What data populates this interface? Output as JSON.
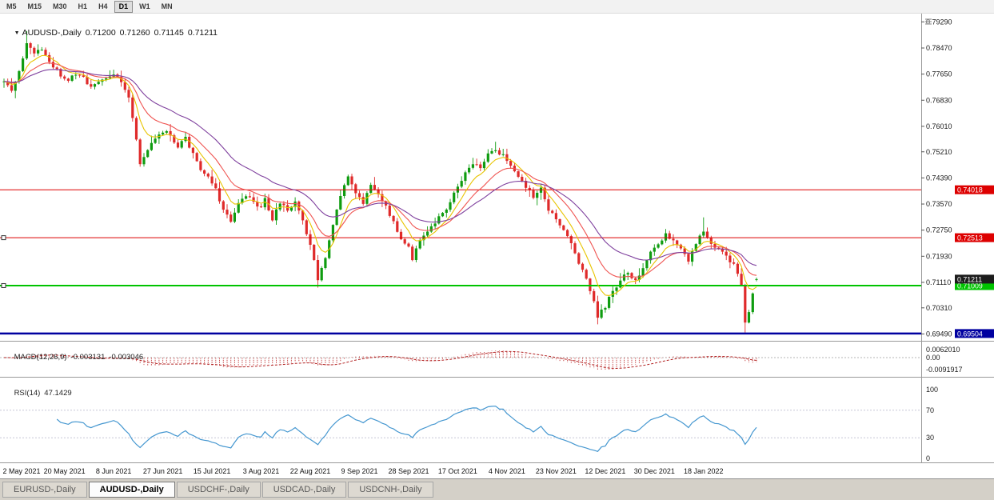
{
  "toolbar": {
    "timeframes": [
      "M5",
      "M15",
      "M30",
      "H1",
      "H4",
      "D1",
      "W1",
      "MN"
    ],
    "active": "D1"
  },
  "header": {
    "marker": "▼",
    "symbol": "AUDUSD-,Daily",
    "open": "0.71200",
    "high": "0.71260",
    "low": "0.71145",
    "close": "0.71211"
  },
  "price_scale": [
    "0.79290",
    "0.78470",
    "0.77650",
    "0.76830",
    "0.76010",
    "0.75210",
    "0.74390",
    "0.73570",
    "0.72750",
    "0.71930",
    "0.71110",
    "0.70310",
    "0.69490"
  ],
  "date_labels": [
    "2 May 2021",
    "20 May 2021",
    "8 Jun 2021",
    "27 Jun 2021",
    "15 Jul 2021",
    "3 Aug 2021",
    "22 Aug 2021",
    "9 Sep 2021",
    "28 Sep 2021",
    "17 Oct 2021",
    "4 Nov 2021",
    "23 Nov 2021",
    "12 Dec 2021",
    "30 Dec 2021",
    "18 Jan 2022"
  ],
  "chart": {
    "hlines": [
      {
        "value": 0.74018,
        "label": "0.74018",
        "color": "#dd0000",
        "width": 1,
        "handle": false
      },
      {
        "value": 0.72513,
        "label": "0.72513",
        "color": "#dd0000",
        "width": 1,
        "handle": true
      },
      {
        "value": 0.71009,
        "label": "0.71009",
        "color": "#00c300",
        "width": 2,
        "handle": true
      },
      {
        "value": 0.69504,
        "label": "0.69504",
        "color": "#0000a0",
        "width": 2.5,
        "handle": false
      }
    ],
    "current_price": {
      "value": 0.71211,
      "label": "0.71211",
      "color": "#1c1c1c"
    }
  },
  "indicators": {
    "macd": {
      "label": "MACD(12,26,9)",
      "main": "-0.003131",
      "signal": "-0.003046",
      "scale": [
        "0.0062010",
        "0.00",
        "-0.0091917"
      ]
    },
    "rsi": {
      "label": "RSI(14)",
      "value": "47.1429",
      "levels": [
        "100",
        "70",
        "30",
        "0"
      ]
    }
  },
  "tabs": [
    {
      "label": "EURUSD-,Daily",
      "active": false
    },
    {
      "label": "AUDUSD-,Daily",
      "active": true
    },
    {
      "label": "USDCHF-,Daily",
      "active": false
    },
    {
      "label": "USDCAD-,Daily",
      "active": false
    },
    {
      "label": "USDCNH-,Daily",
      "active": false
    }
  ],
  "colors": {
    "bull": "#0f9c10",
    "bear": "#df2a2a",
    "macd_histogram": "#c94f4f",
    "macd_signal": "#b22222",
    "rsi_line": "#4597d0"
  },
  "chart_data": {
    "type": "candlestick",
    "symbol": "AUDUSD",
    "timeframe": "Daily",
    "y_range": [
      0.693,
      0.7955
    ],
    "n_candles": 200,
    "last_candle_ohlc": [
      0.712,
      0.7126,
      0.71145,
      0.71211
    ],
    "close_anchors": [
      [
        0,
        0.7742
      ],
      [
        2,
        0.7712
      ],
      [
        4,
        0.7772
      ],
      [
        6,
        0.786
      ],
      [
        8,
        0.7824
      ],
      [
        10,
        0.7845
      ],
      [
        13,
        0.7789
      ],
      [
        15,
        0.7763
      ],
      [
        17,
        0.7748
      ],
      [
        19,
        0.7768
      ],
      [
        21,
        0.7752
      ],
      [
        23,
        0.7722
      ],
      [
        25,
        0.7744
      ],
      [
        27,
        0.7757
      ],
      [
        29,
        0.7769
      ],
      [
        31,
        0.7743
      ],
      [
        33,
        0.7696
      ],
      [
        34,
        0.7622
      ],
      [
        36,
        0.7486
      ],
      [
        38,
        0.7528
      ],
      [
        40,
        0.7567
      ],
      [
        43,
        0.7582
      ],
      [
        46,
        0.7541
      ],
      [
        48,
        0.7561
      ],
      [
        50,
        0.7512
      ],
      [
        52,
        0.7469
      ],
      [
        54,
        0.7446
      ],
      [
        56,
        0.7403
      ],
      [
        58,
        0.7341
      ],
      [
        60,
        0.7303
      ],
      [
        62,
        0.7359
      ],
      [
        64,
        0.7387
      ],
      [
        66,
        0.7361
      ],
      [
        68,
        0.7344
      ],
      [
        69,
        0.7371
      ],
      [
        71,
        0.7311
      ],
      [
        73,
        0.7361
      ],
      [
        75,
        0.7341
      ],
      [
        77,
        0.7361
      ],
      [
        79,
        0.7303
      ],
      [
        81,
        0.7232
      ],
      [
        83,
        0.7121
      ],
      [
        85,
        0.7189
      ],
      [
        87,
        0.7291
      ],
      [
        89,
        0.7387
      ],
      [
        91,
        0.7437
      ],
      [
        93,
        0.7397
      ],
      [
        95,
        0.7362
      ],
      [
        97,
        0.7419
      ],
      [
        99,
        0.7391
      ],
      [
        101,
        0.7347
      ],
      [
        103,
        0.7301
      ],
      [
        105,
        0.7251
      ],
      [
        107,
        0.7224
      ],
      [
        108,
        0.7181
      ],
      [
        110,
        0.7241
      ],
      [
        112,
        0.7271
      ],
      [
        114,
        0.7301
      ],
      [
        116,
        0.7331
      ],
      [
        118,
        0.7361
      ],
      [
        120,
        0.7411
      ],
      [
        122,
        0.7451
      ],
      [
        124,
        0.7481
      ],
      [
        126,
        0.7469
      ],
      [
        128,
        0.7511
      ],
      [
        130,
        0.7529
      ],
      [
        132,
        0.7507
      ],
      [
        134,
        0.7477
      ],
      [
        136,
        0.7444
      ],
      [
        138,
        0.7411
      ],
      [
        140,
        0.7381
      ],
      [
        142,
        0.7403
      ],
      [
        144,
        0.7341
      ],
      [
        146,
        0.7304
      ],
      [
        148,
        0.7271
      ],
      [
        150,
        0.7231
      ],
      [
        152,
        0.7171
      ],
      [
        154,
        0.7121
      ],
      [
        156,
        0.7051
      ],
      [
        157,
        0.7001
      ],
      [
        159,
        0.7037
      ],
      [
        161,
        0.7081
      ],
      [
        163,
        0.7121
      ],
      [
        165,
        0.7141
      ],
      [
        167,
        0.7117
      ],
      [
        169,
        0.7161
      ],
      [
        171,
        0.7201
      ],
      [
        173,
        0.7231
      ],
      [
        175,
        0.7261
      ],
      [
        177,
        0.7241
      ],
      [
        179,
        0.7211
      ],
      [
        181,
        0.7181
      ],
      [
        183,
        0.7231
      ],
      [
        185,
        0.7271
      ],
      [
        187,
        0.7231
      ],
      [
        189,
        0.7211
      ],
      [
        191,
        0.7191
      ],
      [
        193,
        0.7171
      ],
      [
        195,
        0.7101
      ],
      [
        196,
        0.6991
      ],
      [
        197,
        0.7021
      ],
      [
        198,
        0.7081
      ],
      [
        199,
        0.7121
      ]
    ],
    "wick_boosts": {
      "6": 0.0028,
      "83": -0.0018,
      "130": 0.0024,
      "157": -0.0012,
      "185": 0.004,
      "196": -0.0024
    },
    "date_tick_indices": [
      3,
      16,
      29,
      42,
      55,
      68,
      81,
      94,
      107,
      120,
      133,
      146,
      159,
      172,
      185
    ],
    "moving_averages": [
      {
        "period": 7,
        "color": "#e8c400"
      },
      {
        "period": 15,
        "color": "#ef5350"
      },
      {
        "period": 30,
        "color": "#7e3f9d"
      }
    ],
    "macd": {
      "fast": 12,
      "slow": 26,
      "signal": 9
    },
    "rsi": {
      "period": 14
    }
  }
}
